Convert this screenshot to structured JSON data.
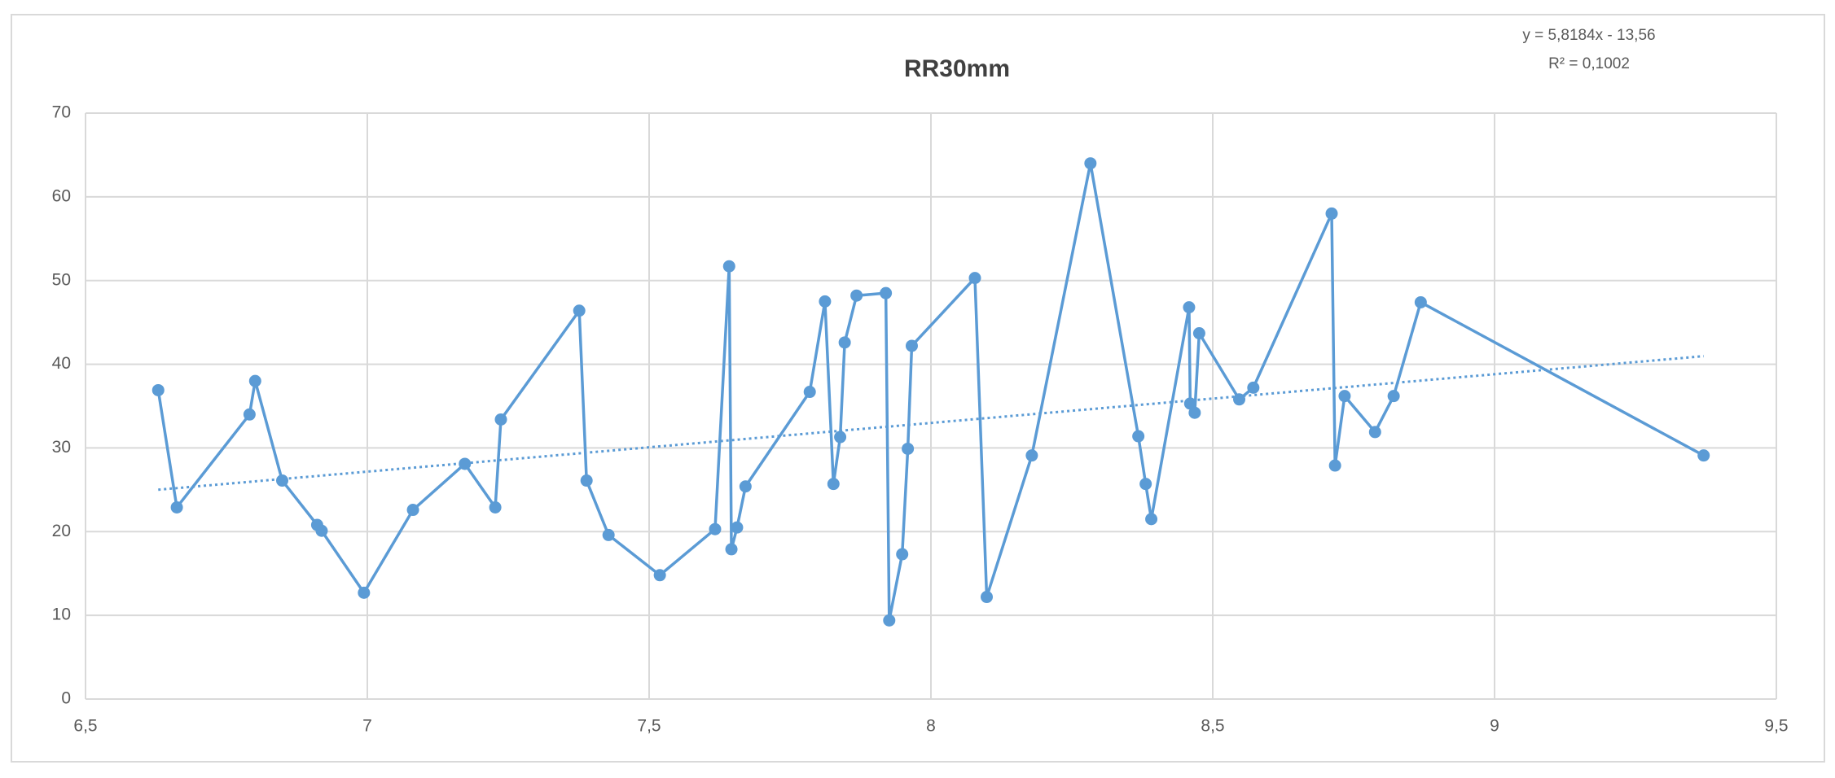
{
  "chart_data": {
    "type": "line",
    "title": "RR30mm",
    "x": [
      6.629,
      6.662,
      6.791,
      6.801,
      6.849,
      6.911,
      6.919,
      6.994,
      7.081,
      7.173,
      7.227,
      7.237,
      7.376,
      7.389,
      7.428,
      7.519,
      7.617,
      7.642,
      7.646,
      7.656,
      7.671,
      7.785,
      7.812,
      7.827,
      7.839,
      7.847,
      7.868,
      7.92,
      7.926,
      7.949,
      7.959,
      7.966,
      8.078,
      8.099,
      8.179,
      8.283,
      8.368,
      8.381,
      8.391,
      8.458,
      8.46,
      8.468,
      8.476,
      8.547,
      8.572,
      8.711,
      8.717,
      8.734,
      8.788,
      8.821,
      8.869,
      9.371
    ],
    "series": [
      {
        "color": "#5b9bd5",
        "values": [
          36.9,
          22.9,
          34.0,
          38.0,
          26.1,
          20.8,
          20.1,
          12.7,
          22.6,
          28.1,
          22.9,
          33.4,
          46.4,
          26.1,
          19.6,
          14.8,
          20.3,
          51.7,
          17.9,
          20.5,
          25.4,
          36.7,
          47.5,
          25.7,
          31.3,
          42.6,
          48.2,
          48.5,
          9.4,
          17.3,
          29.9,
          42.2,
          50.3,
          12.2,
          29.1,
          64.0,
          31.4,
          25.7,
          21.5,
          46.8,
          35.3,
          34.2,
          43.7,
          35.8,
          37.2,
          58.0,
          27.9,
          36.2,
          31.9,
          36.2,
          47.4,
          29.1
        ]
      }
    ],
    "trendline": {
      "slope": 5.8184,
      "intercept": -13.56,
      "label": "y = 5,8184x - 13,56",
      "r2_label": "R² = 0,1002"
    },
    "xlim": [
      6.5,
      9.5
    ],
    "xticks": [
      {
        "value": 6.5,
        "label": "6,5"
      },
      7,
      {
        "value": 7.5,
        "label": "7,5"
      },
      8,
      {
        "value": 8.5,
        "label": "8,5"
      },
      9,
      {
        "value": 9.5,
        "label": "9,5"
      }
    ],
    "ylim": [
      0,
      70
    ],
    "yticks": [
      0,
      10,
      20,
      30,
      40,
      50,
      60,
      70
    ],
    "grid": true
  }
}
